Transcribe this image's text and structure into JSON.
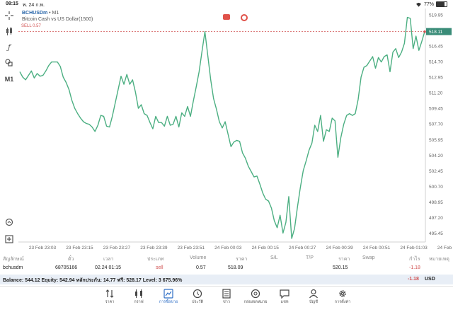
{
  "status_bar": {
    "time": "08:15",
    "date": "พ. 24 ก.พ.",
    "battery": "77%",
    "battery_level": 0.77
  },
  "chart": {
    "symbol": "BCHUSDm",
    "timeframe_suffix": "• M1",
    "description": "Bitcoin Cash vs US Dollar(1500)",
    "sell_label": "SELL 0.57",
    "timeframe_button": "M1",
    "current_price": "518.11",
    "colors": {
      "line": "#4caf82",
      "sell": "#d05050",
      "accent": "#2f6fc6"
    }
  },
  "chart_data": {
    "type": "line",
    "y_ticks": [
      "519.95",
      "518.11",
      "516.45",
      "514.70",
      "512.95",
      "511.20",
      "509.45",
      "507.70",
      "505.95",
      "504.20",
      "502.45",
      "500.70",
      "498.95",
      "497.20",
      "495.45"
    ],
    "x_ticks": [
      "23 Feb 23:03",
      "23 Feb 23:15",
      "23 Feb 23:27",
      "23 Feb 23:39",
      "23 Feb 23:51",
      "24 Feb 00:03",
      "24 Feb 00:15",
      "24 Feb 00:27",
      "24 Feb 00:39",
      "24 Feb 00:51",
      "24 Feb 01:03",
      "24 Feb 01:15"
    ],
    "ylim": [
      494.5,
      520.7
    ],
    "series": [
      {
        "values": [
          513.6,
          513.0,
          512.7,
          513.2,
          513.7,
          512.9,
          513.4,
          513.1,
          513.2,
          513.7,
          514.3,
          514.7,
          514.7,
          514.7,
          514.2,
          513.0,
          512.4,
          511.6,
          510.4,
          509.5,
          508.9,
          508.4,
          508.0,
          507.8,
          507.7,
          507.4,
          506.9,
          507.6,
          508.7,
          508.6,
          507.5,
          507.4,
          508.6,
          510.1,
          511.6,
          513.1,
          512.2,
          513.3,
          512.2,
          512.7,
          511.3,
          509.5,
          509.9,
          508.9,
          508.7,
          507.9,
          507.2,
          508.6,
          507.9,
          507.9,
          507.5,
          508.6,
          507.6,
          507.7,
          508.6,
          507.4,
          509.0,
          508.6,
          509.7,
          508.6,
          510.3,
          511.9,
          513.6,
          515.9,
          518.1,
          515.4,
          512.7,
          510.6,
          509.4,
          508.0,
          507.3,
          508.0,
          506.6,
          505.2,
          505.7,
          505.9,
          505.8,
          504.5,
          503.9,
          503.0,
          502.4,
          501.8,
          501.9,
          501.0,
          500.0,
          499.3,
          499.1,
          498.3,
          496.9,
          496.1,
          497.5,
          495.5,
          496.7,
          499.6,
          494.9,
          496.0,
          498.4,
          500.6,
          502.5,
          503.6,
          504.8,
          505.6,
          507.6,
          506.9,
          508.7,
          505.8,
          507.1,
          506.9,
          508.4,
          508.1,
          504.0,
          506.2,
          507.7,
          508.7,
          508.9,
          508.7,
          508.9,
          510.5,
          513.0,
          514.1,
          514.3,
          514.8,
          515.3,
          514.0,
          515.2,
          514.7,
          515.3,
          515.5,
          513.6,
          515.8,
          516.2,
          515.2,
          515.8,
          516.8,
          519.7,
          519.6,
          516.2,
          517.6,
          516.0,
          517.0,
          518.1
        ]
      }
    ]
  },
  "tools": [
    "crosshair-tool",
    "indicators-tool",
    "function-tool",
    "objects-tool"
  ],
  "table": {
    "headers": [
      "สัญลักษณ์",
      "ตั๋ว",
      "เวลา",
      "ประเภท",
      "Volume",
      "ราคา",
      "S/L",
      "T/P",
      "ราคา",
      "Swap",
      "กำไร",
      "หมายเหตุ"
    ],
    "row": {
      "symbol": "bchusdm",
      "ticket": "68705166",
      "time": "02.24 01:15",
      "type": "sell",
      "volume": "0.57",
      "open_price": "518.09",
      "sl": "",
      "tp": "",
      "price": "520.15",
      "swap": "",
      "profit": "-1.18",
      "comment": ""
    }
  },
  "balance": {
    "text": "Balance: 544.12 Equity: 542.94 หลักประกัน: 14.77 ฟรี: 528.17 Level: 3 675.96%",
    "profit": "-1.18",
    "currency": "USD"
  },
  "tabs": [
    {
      "label": "ราคา",
      "icon": "arrows-updown-icon"
    },
    {
      "label": "กราฟ",
      "icon": "chart-candles-icon"
    },
    {
      "label": "การซื้อขาย",
      "icon": "trade-chart-icon",
      "active": true
    },
    {
      "label": "ประวัติ",
      "icon": "history-clock-icon"
    },
    {
      "label": "ข่าว",
      "icon": "news-icon"
    },
    {
      "label": "กล่องจดหมาย",
      "icon": "mailbox-at-icon"
    },
    {
      "label": "แชท",
      "icon": "chat-bubble-icon"
    },
    {
      "label": "บัญชี",
      "icon": "account-user-icon"
    },
    {
      "label": "การตั้งค่า",
      "icon": "settings-gear-icon"
    }
  ]
}
